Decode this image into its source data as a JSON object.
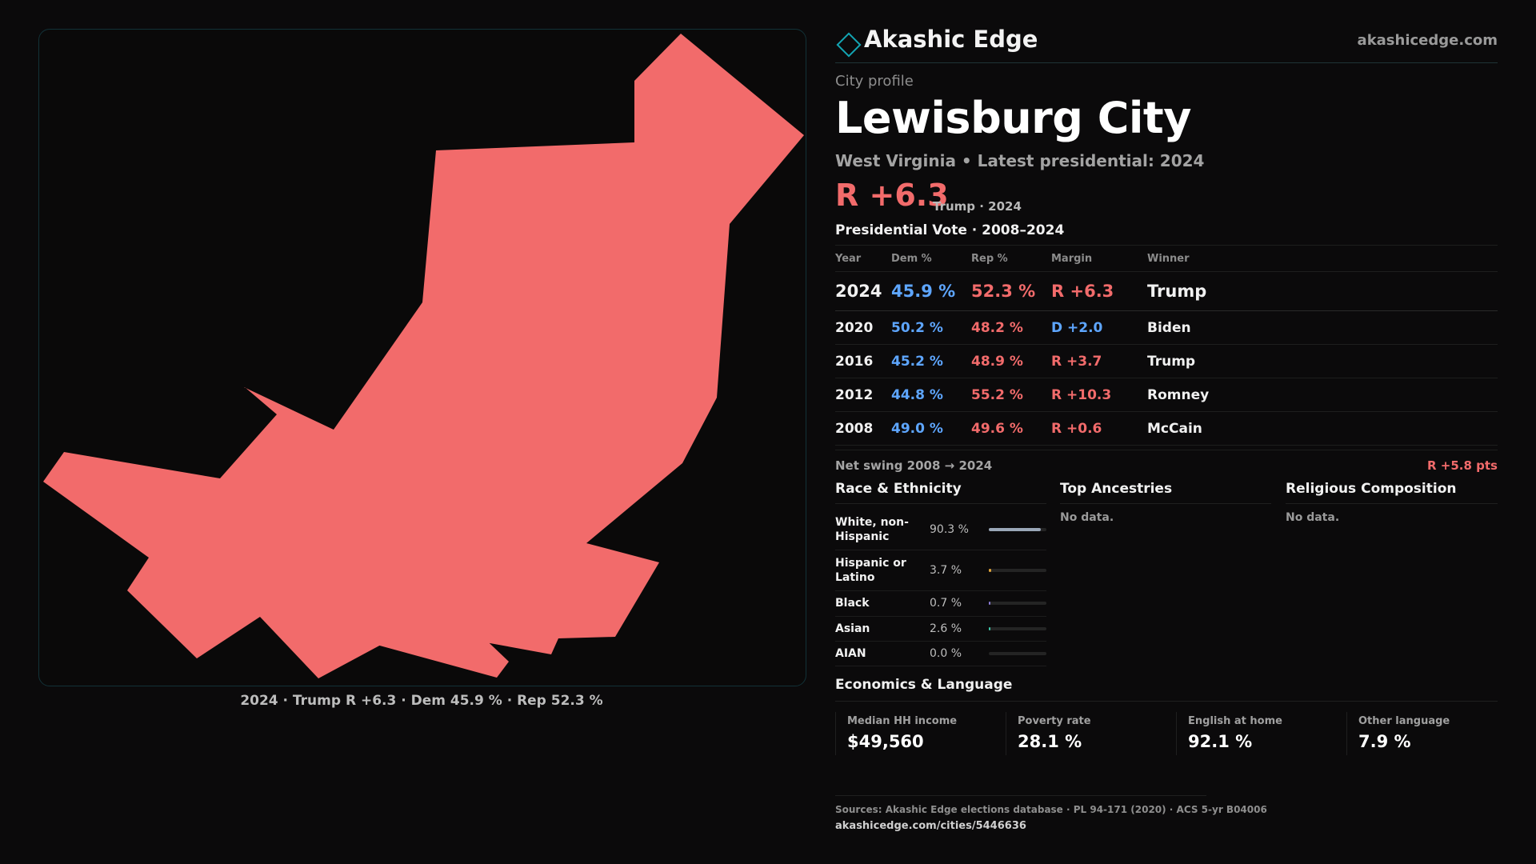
{
  "brand": {
    "name": "Akashic Edge",
    "url": "akashicedge.com"
  },
  "profile": {
    "kicker": "City profile",
    "title": "Lewisburg City",
    "subtitle": "West Virginia • Latest presidential: 2024",
    "margin": "R +6.3",
    "margin_note": "Trump · 2024"
  },
  "map": {
    "caption": "2024 · Trump R +6.3 · Dem 45.9 % · Rep 52.3 %",
    "fill_color": "#f26b6b"
  },
  "vote": {
    "title": "Presidential Vote · 2008–2024",
    "headers": {
      "year": "Year",
      "dem": "Dem %",
      "rep": "Rep %",
      "margin": "Margin",
      "winner": "Winner"
    },
    "rows": [
      {
        "year": "2024",
        "dem": "45.9 %",
        "rep": "52.3 %",
        "margin": "R +6.3",
        "winner": "Trump"
      },
      {
        "year": "2020",
        "dem": "50.2 %",
        "rep": "48.2 %",
        "margin": "D +2.0",
        "winner": "Biden"
      },
      {
        "year": "2016",
        "dem": "45.2 %",
        "rep": "48.9 %",
        "margin": "R +3.7",
        "winner": "Trump"
      },
      {
        "year": "2012",
        "dem": "44.8 %",
        "rep": "55.2 %",
        "margin": "R +10.3",
        "winner": "Romney"
      },
      {
        "year": "2008",
        "dem": "49.0 %",
        "rep": "49.6 %",
        "margin": "R +0.6",
        "winner": "McCain"
      }
    ],
    "swing_label": "Net swing 2008 → 2024",
    "swing_value": "R +5.8 pts"
  },
  "race": {
    "title": "Race & Ethnicity",
    "rows": [
      {
        "name": "White, non-Hispanic",
        "pct": "90.3 %",
        "value": 90.3,
        "color": "#9aa7b8"
      },
      {
        "name": "Hispanic or Latino",
        "pct": "3.7 %",
        "value": 3.7,
        "color": "#e0a43a"
      },
      {
        "name": "Black",
        "pct": "0.7 %",
        "value": 0.7,
        "color": "#8a7ad6"
      },
      {
        "name": "Asian",
        "pct": "2.6 %",
        "value": 2.6,
        "color": "#3ec7a8"
      },
      {
        "name": "AIAN",
        "pct": "0.0 %",
        "value": 0.0,
        "color": "#c07a4e"
      }
    ]
  },
  "ancestries": {
    "title": "Top Ancestries",
    "empty": "No data."
  },
  "religion": {
    "title": "Religious Composition",
    "empty": "No data."
  },
  "economics": {
    "title": "Economics & Language",
    "items": [
      {
        "label": "Median HH income",
        "value": "$49,560"
      },
      {
        "label": "Poverty rate",
        "value": "28.1 %"
      },
      {
        "label": "English at home",
        "value": "92.1 %"
      },
      {
        "label": "Other language",
        "value": "7.9 %"
      }
    ]
  },
  "footer": {
    "sources": "Sources: Akashic Edge elections database · PL 94-171 (2020) · ACS 5-yr B04006",
    "url": "akashicedge.com/cities/5446636"
  }
}
